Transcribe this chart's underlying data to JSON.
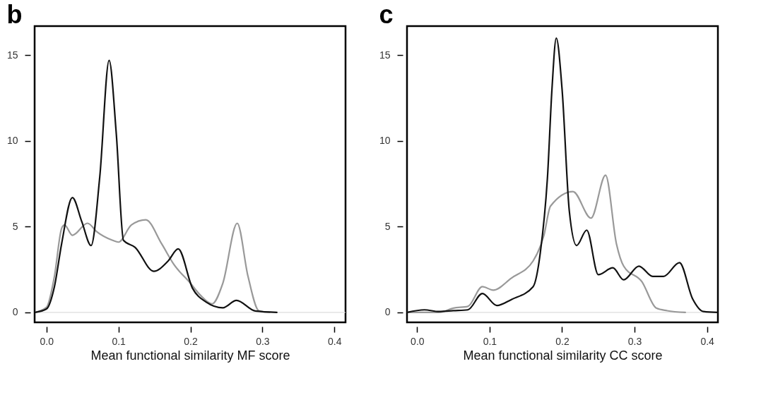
{
  "chart_data": [
    {
      "type": "line",
      "title": "b",
      "xlabel": "Mean functional similarity MF score",
      "xlim": [
        -0.0165,
        0.4155
      ],
      "xticks": [
        {
          "value": 0,
          "label": "0.0"
        },
        0.1,
        0.2,
        0.3,
        0.4
      ],
      "ylim": [
        -0.58,
        16.7
      ],
      "yticks": [
        0,
        5,
        10,
        15
      ],
      "ref_lines": [
        {
          "axis": "y",
          "value": 0,
          "color": "#dddddd"
        }
      ],
      "series": [
        {
          "color": "#999999",
          "x": [
            -0.016,
            0.0,
            0.011,
            0.021,
            0.025,
            0.036,
            0.057,
            0.07,
            0.092,
            0.1,
            0.118,
            0.138,
            0.16,
            0.177,
            0.2,
            0.214,
            0.23,
            0.245,
            0.265,
            0.28,
            0.295,
            0.31
          ],
          "values": [
            0,
            0.3,
            2.1,
            4.9,
            5.1,
            4.5,
            5.2,
            4.7,
            4.2,
            4.1,
            5.1,
            5.4,
            4.0,
            2.8,
            1.7,
            1.0,
            0.5,
            1.7,
            5.2,
            2.1,
            0.1,
            0
          ]
        },
        {
          "color": "#111111",
          "x": [
            -0.016,
            0.0,
            0.011,
            0.021,
            0.036,
            0.049,
            0.062,
            0.074,
            0.087,
            0.097,
            0.107,
            0.123,
            0.149,
            0.169,
            0.183,
            0.203,
            0.222,
            0.245,
            0.264,
            0.29,
            0.32
          ],
          "values": [
            0,
            0.2,
            1.5,
            4.0,
            6.7,
            5.3,
            3.9,
            7.9,
            14.7,
            10.4,
            4.2,
            3.8,
            2.4,
            3.0,
            3.7,
            1.4,
            0.6,
            0.27,
            0.7,
            0.08,
            0
          ]
        }
      ]
    },
    {
      "type": "line",
      "title": "c",
      "xlabel": "Mean functional similarity CC score",
      "xlim": [
        -0.014,
        0.415
      ],
      "xticks": [
        {
          "value": 0,
          "label": "0.0"
        },
        0.1,
        0.2,
        0.3,
        0.4
      ],
      "ylim": [
        -0.58,
        16.7
      ],
      "yticks": [
        0,
        5,
        10,
        15
      ],
      "ref_lines": [
        {
          "axis": "y",
          "value": 0,
          "color": "#dddddd"
        }
      ],
      "series": [
        {
          "color": "#999999",
          "x": [
            -0.014,
            0.03,
            0.05,
            0.07,
            0.09,
            0.105,
            0.13,
            0.16,
            0.175,
            0.184,
            0.215,
            0.24,
            0.26,
            0.275,
            0.285,
            0.31,
            0.33,
            0.345,
            0.37
          ],
          "values": [
            0,
            0,
            0.25,
            0.35,
            1.5,
            1.3,
            2.0,
            3.0,
            4.5,
            6.2,
            7.05,
            5.5,
            8.0,
            4.0,
            2.7,
            1.8,
            0.25,
            0.1,
            0
          ]
        },
        {
          "color": "#111111",
          "x": [
            -0.014,
            0.01,
            0.03,
            0.05,
            0.07,
            0.09,
            0.11,
            0.13,
            0.16,
            0.17,
            0.18,
            0.186,
            0.192,
            0.2,
            0.21,
            0.22,
            0.234,
            0.25,
            0.27,
            0.285,
            0.306,
            0.325,
            0.34,
            0.362,
            0.38,
            0.395,
            0.415
          ],
          "values": [
            0,
            0.15,
            0.05,
            0.1,
            0.15,
            1.1,
            0.4,
            0.75,
            1.5,
            3.5,
            8.0,
            13.0,
            16.0,
            13.0,
            5.9,
            3.9,
            4.8,
            2.2,
            2.6,
            1.9,
            2.7,
            2.1,
            2.1,
            2.9,
            0.8,
            0.05,
            0
          ]
        }
      ]
    }
  ]
}
